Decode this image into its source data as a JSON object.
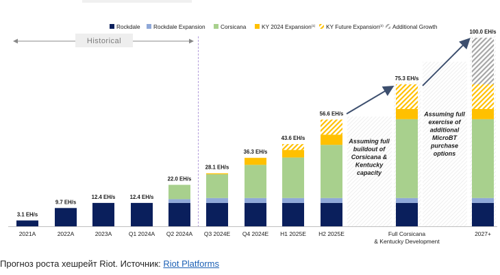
{
  "chart_data": {
    "type": "bar",
    "stacked": true,
    "unit": "EH/s",
    "categories": [
      "2021A",
      "2022A",
      "2023A",
      "Q1 2024A",
      "Q2 2024A",
      "Q3 2024E",
      "Q4 2024E",
      "H1 2025E",
      "H2 2025E",
      "Full Corsicana\n& Kentucky Development",
      "2027+"
    ],
    "totals_labels": [
      "3.1 EH/s",
      "9.7 EH/s",
      "12.4 EH/s",
      "12.4 EH/s",
      "22.0 EH/s",
      "28.1 EH/s",
      "36.3 EH/s",
      "43.6 EH/s",
      "56.6 EH/s",
      "75.3 EH/s",
      "100.0 EH/s"
    ],
    "series": [
      {
        "name": "Rockdale",
        "color": "#0a1f5c",
        "pattern": "solid",
        "values": [
          3.1,
          9.7,
          12.4,
          12.4,
          12.4,
          12.4,
          12.4,
          12.4,
          12.4,
          12.4,
          12.4
        ]
      },
      {
        "name": "Rockdale Expansion",
        "color": "#8fa8d8",
        "pattern": "solid",
        "values": [
          0,
          0,
          0,
          0,
          2.0,
          2.6,
          2.6,
          2.6,
          2.6,
          2.6,
          2.6
        ]
      },
      {
        "name": "Corsicana",
        "color": "#a8d08d",
        "pattern": "solid",
        "values": [
          0,
          0,
          0,
          0,
          7.6,
          12.6,
          17.6,
          21.5,
          28.2,
          41.8,
          41.8
        ]
      },
      {
        "name": "KY 2024 Expansion",
        "color": "#ffc000",
        "pattern": "solid",
        "values": [
          0,
          0,
          0,
          0,
          0,
          0.5,
          3.7,
          4.0,
          5.4,
          5.4,
          5.4
        ]
      },
      {
        "name": "KY Future Expansion",
        "color": "#ffc000",
        "pattern": "hatch",
        "values": [
          0,
          0,
          0,
          0,
          0,
          0,
          0,
          3.1,
          8.0,
          13.1,
          13.1
        ]
      },
      {
        "name": "Additional Growth",
        "color": "#a6a6a6",
        "pattern": "hatch",
        "values": [
          0,
          0,
          0,
          0,
          0,
          0,
          0,
          0,
          0,
          0,
          24.7
        ]
      }
    ],
    "legend_labels": [
      "Rockdale",
      "Rockdale Expansion",
      "Corsicana",
      "KY 2024 Expansion",
      "KY Future Expansion",
      "Additional Growth"
    ],
    "legend_superscripts": [
      "",
      "",
      "",
      "(1)",
      "(2)",
      ""
    ],
    "ylim": [
      0,
      100
    ],
    "historical_label": "Historical",
    "annotations": [
      {
        "between": [
          8,
          9
        ],
        "text": "Assuming full buildout of Corsicana & Kentucky capacity"
      },
      {
        "between": [
          9,
          10
        ],
        "text": "Assuming full exercise of additional MicroBT purchase options"
      }
    ]
  },
  "caption": {
    "text": "Прогноз роста хешрейт Riot. Источник: ",
    "link_text": "Riot Platforms"
  }
}
